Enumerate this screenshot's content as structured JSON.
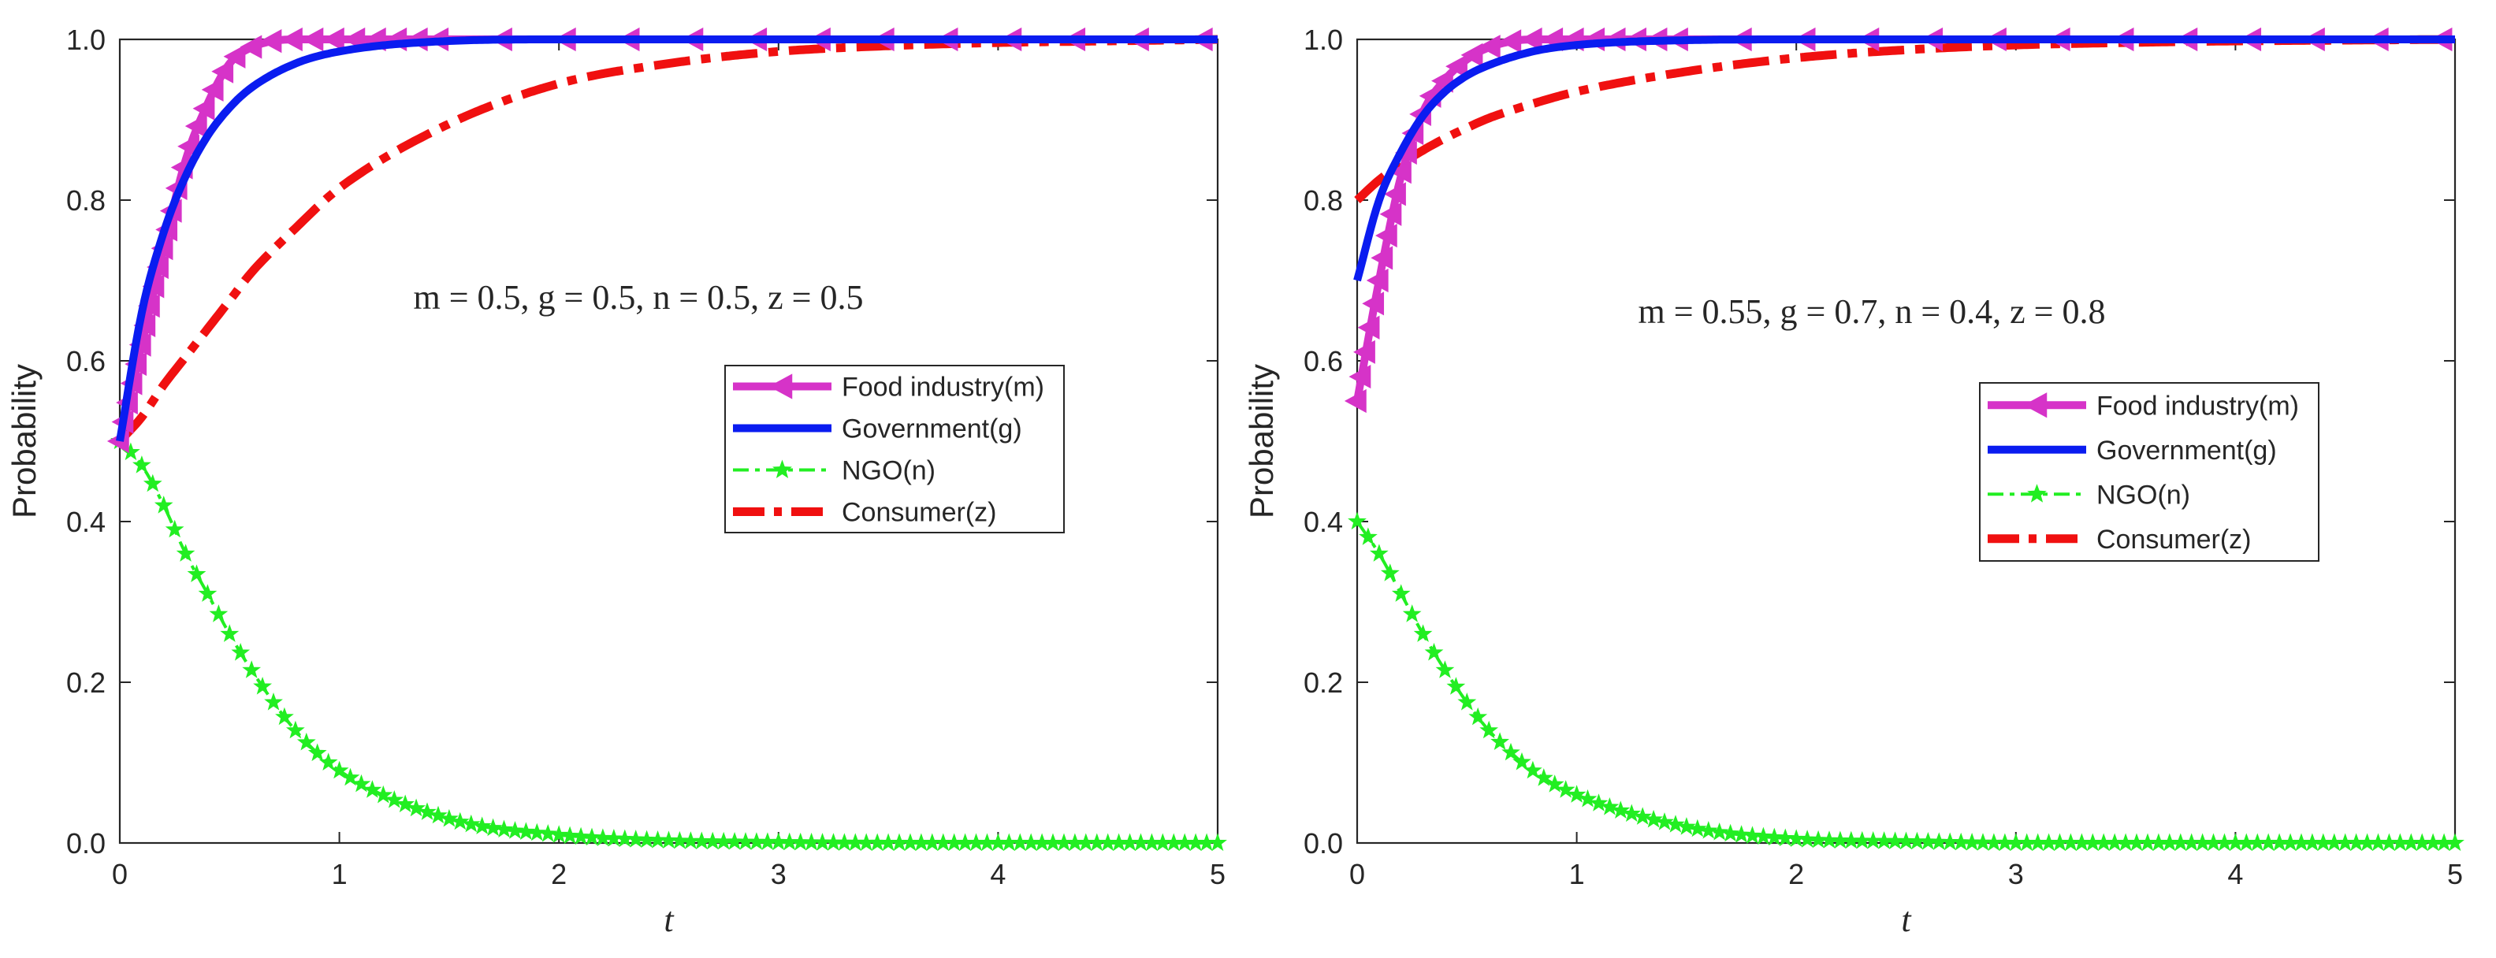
{
  "chart_data": [
    {
      "type": "line",
      "xlabel": "t",
      "ylabel": "Probability",
      "xlim": [
        0,
        5
      ],
      "ylim": [
        0,
        1
      ],
      "xticks": [
        "0",
        "1",
        "2",
        "3",
        "4",
        "5"
      ],
      "yticks": [
        "0.0",
        "0.2",
        "0.4",
        "0.6",
        "0.8",
        "1.0"
      ],
      "annotation": "m = 0.5, g = 0.5, n = 0.5, z = 0.5",
      "legend_position": "center-right",
      "grid": false,
      "x": [
        0,
        0.1,
        0.2,
        0.3,
        0.4,
        0.5,
        0.6,
        0.8,
        1.0,
        1.5,
        2.0,
        2.5,
        3.0,
        3.5,
        4.0,
        4.5,
        5.0
      ],
      "series": [
        {
          "name": "Food industry(m)",
          "label": "Food industry",
          "var": "m",
          "color": "#d633c8",
          "style": "solid-triangle-left",
          "values": [
            0.5,
            0.62,
            0.74,
            0.85,
            0.92,
            0.97,
            0.99,
            1.0,
            1.0,
            1.0,
            1.0,
            1.0,
            1.0,
            1.0,
            1.0,
            1.0,
            1.0
          ]
        },
        {
          "name": "Government(g)",
          "label": "Government",
          "var": "g",
          "color": "#0a1cf0",
          "style": "solid",
          "values": [
            0.5,
            0.66,
            0.76,
            0.83,
            0.88,
            0.915,
            0.94,
            0.97,
            0.985,
            0.998,
            1.0,
            1.0,
            1.0,
            1.0,
            1.0,
            1.0,
            1.0
          ]
        },
        {
          "name": "NGO(n)",
          "label": "NGO",
          "var": "n",
          "color": "#22ee22",
          "style": "dashdot-star",
          "values": [
            0.5,
            0.47,
            0.42,
            0.36,
            0.31,
            0.26,
            0.215,
            0.14,
            0.09,
            0.03,
            0.01,
            0.003,
            0.001,
            0.0,
            0.0,
            0.0,
            0.0
          ]
        },
        {
          "name": "Consumer(z)",
          "label": "Consumer",
          "var": "z",
          "color": "#f01010",
          "style": "dashdot",
          "values": [
            0.5,
            0.53,
            0.57,
            0.605,
            0.64,
            0.675,
            0.71,
            0.765,
            0.815,
            0.895,
            0.945,
            0.97,
            0.985,
            0.992,
            0.996,
            0.998,
            1.0
          ]
        }
      ]
    },
    {
      "type": "line",
      "xlabel": "t",
      "ylabel": "Probability",
      "xlim": [
        0,
        5
      ],
      "ylim": [
        0,
        1
      ],
      "xticks": [
        "0",
        "1",
        "2",
        "3",
        "4",
        "5"
      ],
      "yticks": [
        "0.0",
        "0.2",
        "0.4",
        "0.6",
        "0.8",
        "1.0"
      ],
      "annotation": "m = 0.55, g = 0.7, n = 0.4, z = 0.8",
      "legend_position": "center-right",
      "grid": false,
      "x": [
        0,
        0.1,
        0.2,
        0.3,
        0.4,
        0.5,
        0.6,
        0.8,
        1.0,
        1.5,
        2.0,
        2.5,
        3.0,
        3.5,
        4.0,
        4.5,
        5.0
      ],
      "series": [
        {
          "name": "Food industry(m)",
          "label": "Food industry",
          "var": "m",
          "color": "#d633c8",
          "style": "solid-triangle-left",
          "values": [
            0.55,
            0.7,
            0.83,
            0.91,
            0.95,
            0.975,
            0.99,
            1.0,
            1.0,
            1.0,
            1.0,
            1.0,
            1.0,
            1.0,
            1.0,
            1.0,
            1.0
          ]
        },
        {
          "name": "Government(g)",
          "label": "Government",
          "var": "g",
          "color": "#0a1cf0",
          "style": "solid",
          "values": [
            0.7,
            0.8,
            0.86,
            0.905,
            0.935,
            0.955,
            0.968,
            0.985,
            0.993,
            0.999,
            1.0,
            1.0,
            1.0,
            1.0,
            1.0,
            1.0,
            1.0
          ]
        },
        {
          "name": "NGO(n)",
          "label": "NGO",
          "var": "n",
          "color": "#22ee22",
          "style": "dashdot-star",
          "values": [
            0.4,
            0.36,
            0.31,
            0.26,
            0.215,
            0.175,
            0.14,
            0.09,
            0.06,
            0.02,
            0.005,
            0.002,
            0.0,
            0.0,
            0.0,
            0.0,
            0.0
          ]
        },
        {
          "name": "Consumer(z)",
          "label": "Consumer",
          "var": "z",
          "color": "#f01010",
          "style": "dashdot",
          "values": [
            0.8,
            0.825,
            0.845,
            0.862,
            0.877,
            0.89,
            0.902,
            0.92,
            0.935,
            0.96,
            0.977,
            0.987,
            0.993,
            0.996,
            0.998,
            0.999,
            1.0
          ]
        }
      ]
    }
  ]
}
